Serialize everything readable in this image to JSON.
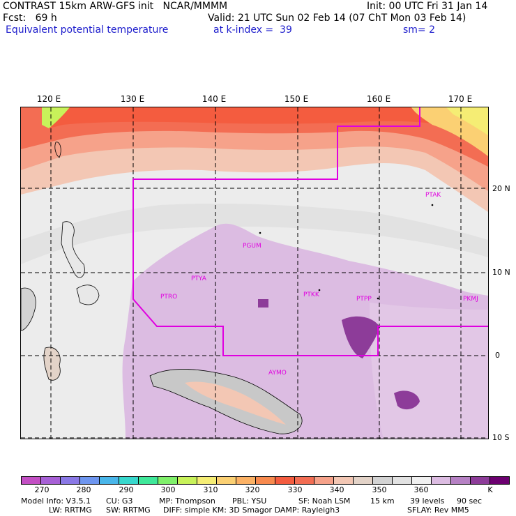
{
  "header": {
    "line1_left": "CONTRAST 15km ARW-GFS init   NCAR/MMMM",
    "line1_right": "Init: 00 UTC Fri 31 Jan 14",
    "line2_left": "Fcst:   69 h",
    "line2_right": "Valid: 21 UTC Sun 02 Feb 14 (07 ChT Mon 03 Feb 14)",
    "line3_left": "Equivalent potential temperature",
    "line3_mid": "at k-index =  39",
    "line3_right": "sm= 2"
  },
  "map": {
    "lon_labels": [
      "120 E",
      "130 E",
      "140 E",
      "150 E",
      "160 E",
      "170 E"
    ],
    "lat_labels": [
      "20 N",
      "10 N",
      "0",
      "10 S"
    ],
    "stations": [
      "PTAK",
      "PGUM",
      "PTYA",
      "PTRO",
      "PTKK",
      "PTPP",
      "PKMJ",
      "AYMO"
    ]
  },
  "colorbar": {
    "colors": [
      "#c34fc4",
      "#a760d6",
      "#8a78e6",
      "#6e96f0",
      "#49b6ea",
      "#37d8cd",
      "#3fe89a",
      "#7ff06a",
      "#c8f25a",
      "#f5ed74",
      "#fbd073",
      "#fbb164",
      "#f88a4e",
      "#f45c3f",
      "#f36d53",
      "#f6a28a",
      "#f3c7b4",
      "#e3d3c8",
      "#d3d3d3",
      "#e2e2e2",
      "#f0f0f0",
      "#dcbce2",
      "#b681c4",
      "#8d3c99",
      "#6c0070"
    ],
    "labels": [
      "270",
      "280",
      "290",
      "300",
      "310",
      "320",
      "330",
      "340",
      "350",
      "360",
      "K"
    ]
  },
  "footer": {
    "line1": [
      "Model Info: V3.5.1",
      "CU: G3",
      "MP: Thompson",
      "PBL: YSU",
      "SF: Noah LSM",
      "15 km",
      "39 levels",
      "90 sec"
    ],
    "line2": [
      "LW: RRTMG",
      "SW: RRTMG",
      "DIFF: simple KM: 3D Smagor DAMP: Rayleigh3",
      "SFLAY: Rev MM5"
    ]
  }
}
